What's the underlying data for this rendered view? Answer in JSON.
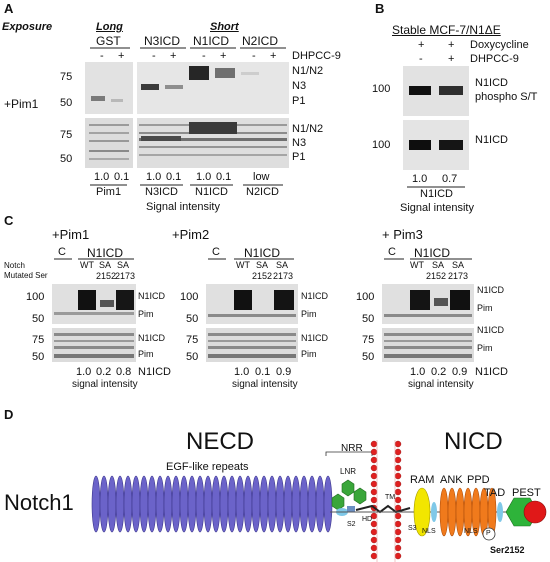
{
  "panel_a": {
    "letter": "A",
    "exposure_label": "Exposure",
    "long_label": "Long",
    "short_label": "Short",
    "lane_groups": [
      "GST",
      "N3ICD",
      "N1ICD",
      "N2ICD"
    ],
    "minus": "-",
    "plus": "+",
    "dhpcc_label": "DHPCC-9",
    "pim_label": "+Pim1",
    "mw_top": [
      "75",
      "50"
    ],
    "mw_bottom": [
      "75",
      "50"
    ],
    "bands_top": [
      "N1/N2",
      "N3",
      "P1"
    ],
    "bands_bottom": [
      "N1/N2",
      "N3",
      "P1"
    ],
    "intensities": [
      "1.0",
      "0.1",
      "1.0",
      "0.1",
      "1.0",
      "0.1",
      "low"
    ],
    "intensity_names": [
      "Pim1",
      "N3ICD",
      "N1ICD",
      "N2ICD"
    ],
    "caption": "Signal intensity"
  },
  "panel_b": {
    "letter": "B",
    "title": "Stable MCF-7/N1ΔE",
    "doxy_label": "Doxycycline",
    "dhpcc_label": "DHPCC-9",
    "doxy_marks": [
      "+",
      "+"
    ],
    "dhpcc_marks": [
      "-",
      "+"
    ],
    "mw": [
      "100",
      "100"
    ],
    "band_top": [
      "N1ICD",
      "phospho S/T"
    ],
    "band_bottom": "N1ICD",
    "intensities": [
      "1.0",
      "0.7"
    ],
    "intensity_name": "N1ICD",
    "caption": "Signal intensity"
  },
  "panel_c": {
    "letter": "C",
    "row_label_1": "Notch",
    "row_label_2": "Mutated Ser",
    "blots": [
      {
        "title": "+Pim1",
        "intensities": [
          "1.0",
          "0.2",
          "0.8"
        ],
        "show_name": true
      },
      {
        "title": "+Pim2",
        "intensities": [
          "1.0",
          "0.1",
          "0.9"
        ],
        "show_name": false
      },
      {
        "title": "+ Pim3",
        "intensities": [
          "1.0",
          "0.2",
          "0.9"
        ],
        "show_name": true
      }
    ],
    "control": "C",
    "group": "N1ICD",
    "lanes": [
      "WT",
      "SA",
      "SA"
    ],
    "sites": [
      "2152",
      "2173"
    ],
    "mw_top": [
      "100",
      "50"
    ],
    "mw_bottom": [
      "75",
      "50"
    ],
    "bands_top": [
      "N1ICD",
      "Pim"
    ],
    "bands_bottom": [
      "N1ICD",
      "Pim"
    ],
    "intensity_name": "N1ICD",
    "caption": "signal intensity"
  },
  "panel_d": {
    "letter": "D",
    "protein": "Notch1",
    "necd": "NECD",
    "egf": "EGF-like repeats",
    "nrr": "NRR",
    "lnr": "LNR",
    "s2": "S2",
    "hd": "HD",
    "tm": "TM",
    "s3": "S3",
    "nicd": "NICD",
    "ram": "RAM",
    "ank": "ANK",
    "ppd": "PPD",
    "nls1": "NLS",
    "nls2": "NLS",
    "p": "P",
    "tad": "TAD",
    "pest": "PEST",
    "ser": "Ser2152",
    "colors": {
      "egf": "#6b63c9",
      "lnr": "#3aa63a",
      "membrane": "#e02020",
      "ram": "#f2e600",
      "ank": "#f07a1c",
      "nls": "#7fc8e8",
      "tad": "#2eb33a",
      "pest": "#e01818"
    }
  }
}
